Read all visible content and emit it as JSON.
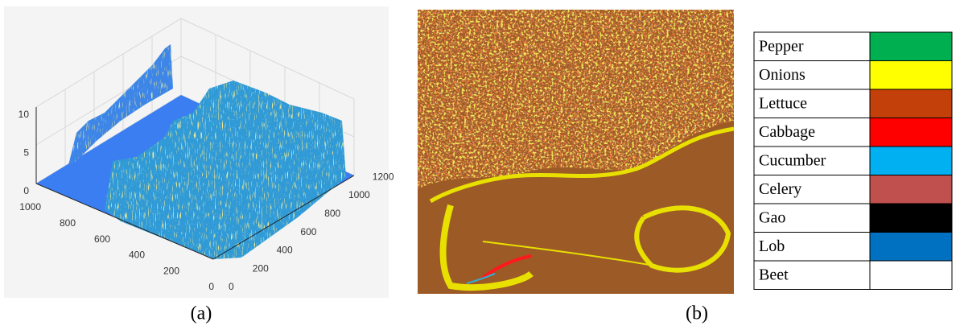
{
  "panels": {
    "a": {
      "caption": "(a)",
      "z_ticks": [
        0,
        5,
        10
      ],
      "y_ticks": [
        0,
        200,
        400,
        600,
        800,
        1000
      ],
      "x_ticks": [
        0,
        200,
        400,
        600,
        800,
        1000,
        1200
      ]
    },
    "b": {
      "caption": "(b)"
    }
  },
  "legend": {
    "rows": [
      {
        "label": "Pepper",
        "color": "#00b050"
      },
      {
        "label": "Onions",
        "color": "#ffff00"
      },
      {
        "label": "Lettuce",
        "color": "#c4400a"
      },
      {
        "label": "Cabbage",
        "color": "#ff0000"
      },
      {
        "label": "Cucumber",
        "color": "#00b0f0"
      },
      {
        "label": "Celery",
        "color": "#c0504d"
      },
      {
        "label": "Gao",
        "color": "#000000"
      },
      {
        "label": "Lob",
        "color": "#0070c0"
      },
      {
        "label": "Beet",
        "color": "#ffffff"
      }
    ]
  }
}
